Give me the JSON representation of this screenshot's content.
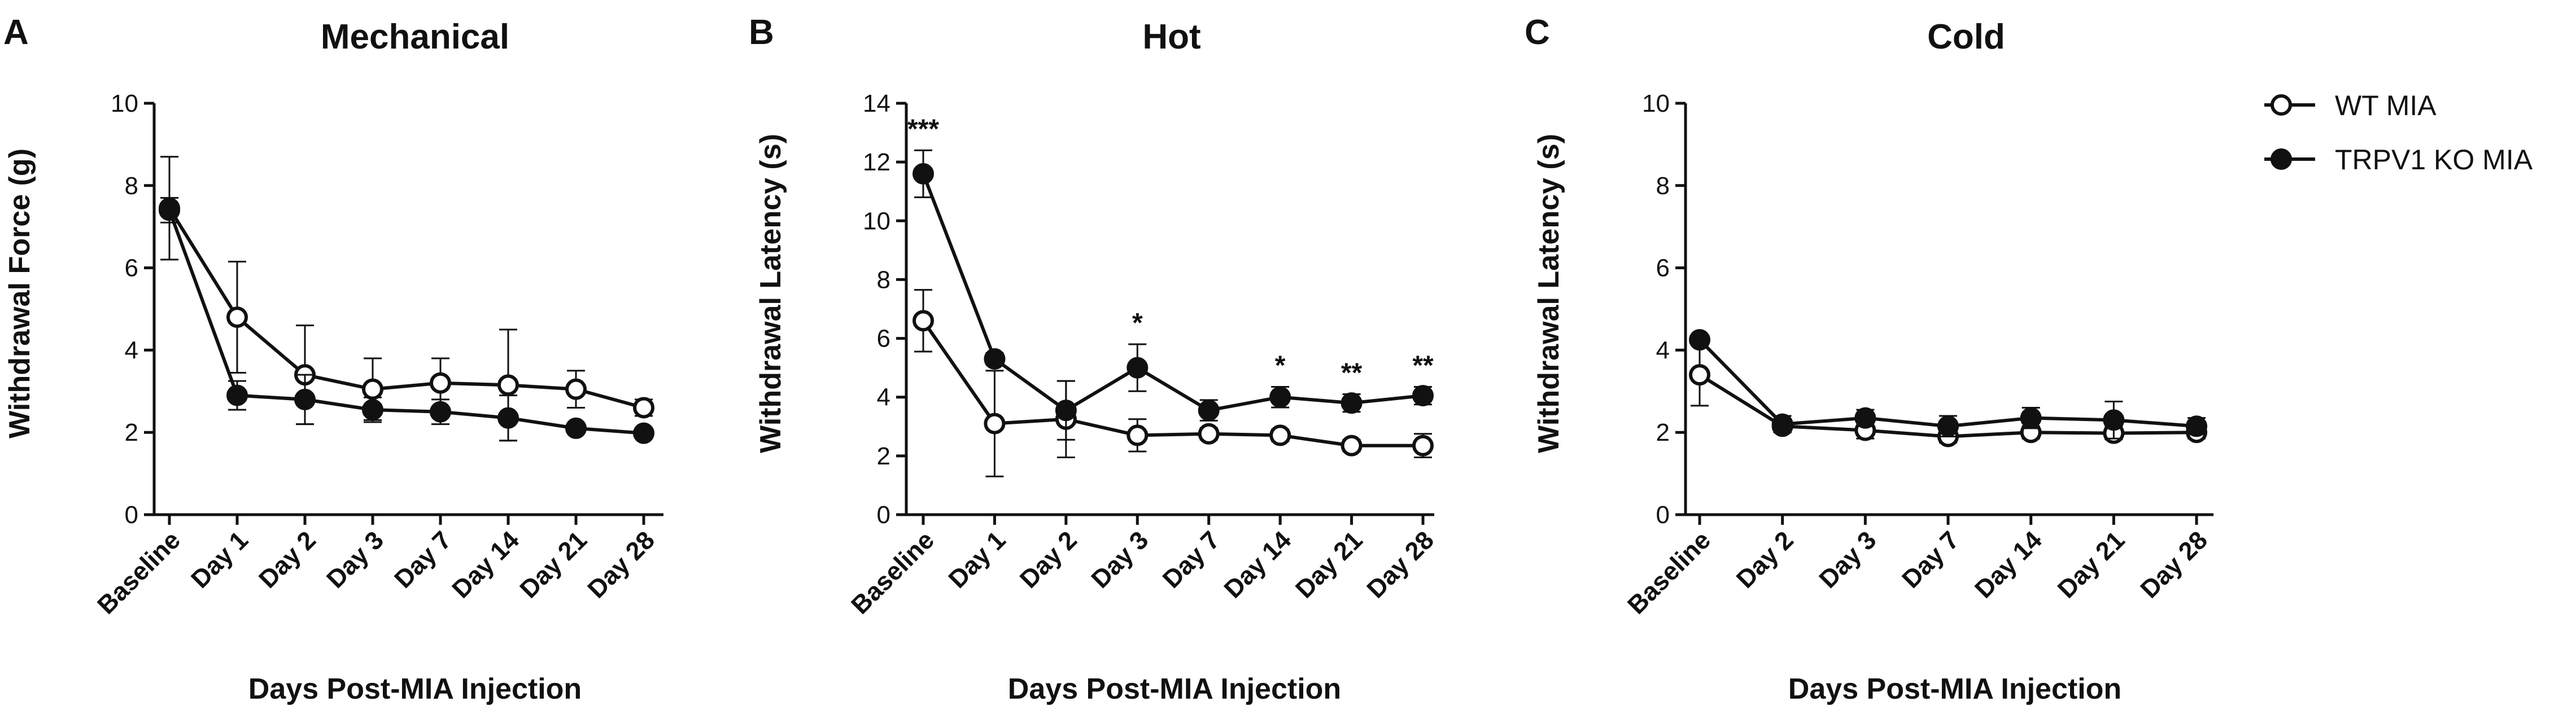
{
  "chart_data": [
    {
      "type": "line",
      "panel": "A",
      "title": "Mechanical",
      "xlabel": "Days Post-MIA Injection",
      "ylabel": "Withdrawal Force (g)",
      "ylim": [
        0,
        10
      ],
      "yticks": [
        "0",
        "2",
        "4",
        "6",
        "8",
        "10"
      ],
      "categories": [
        "Baseline",
        "Day 1",
        "Day 2",
        "Day 3",
        "Day 7",
        "Day 14",
        "Day 21",
        "Day 28"
      ],
      "series": [
        {
          "name": "WT MIA",
          "marker": "open-circle",
          "values": [
            7.45,
            4.8,
            3.4,
            3.05,
            3.2,
            3.15,
            3.05,
            2.6
          ],
          "errors": [
            1.25,
            1.35,
            1.2,
            0.75,
            0.6,
            1.35,
            0.45,
            0.2
          ]
        },
        {
          "name": "TRPV1 KO MIA",
          "marker": "filled-circle",
          "values": [
            7.4,
            2.9,
            2.8,
            2.55,
            2.5,
            2.35,
            2.1,
            1.98
          ],
          "errors": [
            0.3,
            0.35,
            0.6,
            0.3,
            0.3,
            0.55,
            0.12,
            0.12
          ]
        }
      ],
      "significance": []
    },
    {
      "type": "line",
      "panel": "B",
      "title": "Hot",
      "xlabel": "Days Post-MIA Injection",
      "ylabel": "Withdrawal Latency (s)",
      "ylim": [
        0,
        14
      ],
      "yticks": [
        "0",
        "2",
        "4",
        "6",
        "8",
        "10",
        "12",
        "14"
      ],
      "categories": [
        "Baseline",
        "Day 1",
        "Day 2",
        "Day 3",
        "Day 7",
        "Day 14",
        "Day 21",
        "Day 28"
      ],
      "series": [
        {
          "name": "WT MIA",
          "marker": "open-circle",
          "values": [
            6.6,
            3.1,
            3.25,
            2.7,
            2.75,
            2.7,
            2.35,
            2.35
          ],
          "errors": [
            1.05,
            1.8,
            1.3,
            0.55,
            0.2,
            0.2,
            0.2,
            0.4
          ]
        },
        {
          "name": "TRPV1 KO MIA",
          "marker": "filled-circle",
          "values": [
            11.6,
            5.3,
            3.55,
            5.0,
            3.55,
            4.0,
            3.8,
            4.05
          ],
          "errors": [
            0.8,
            0.2,
            1.0,
            0.8,
            0.35,
            0.35,
            0.3,
            0.3
          ]
        }
      ],
      "significance": [
        {
          "category": "Baseline",
          "label": "***"
        },
        {
          "category": "Day 3",
          "label": "*"
        },
        {
          "category": "Day 14",
          "label": "*"
        },
        {
          "category": "Day 21",
          "label": "**"
        },
        {
          "category": "Day 28",
          "label": "**"
        }
      ]
    },
    {
      "type": "line",
      "panel": "C",
      "title": "Cold",
      "xlabel": "Days Post-MIA Injection",
      "ylabel": "Withdrawal Latency (s)",
      "ylim": [
        0,
        10
      ],
      "yticks": [
        "0",
        "2",
        "4",
        "6",
        "8",
        "10"
      ],
      "categories": [
        "Baseline",
        "Day 2",
        "Day 3",
        "Day 7",
        "Day 14",
        "Day 21",
        "Day 28"
      ],
      "series": [
        {
          "name": "WT MIA",
          "marker": "open-circle",
          "values": [
            3.4,
            2.15,
            2.05,
            1.9,
            2.0,
            1.98,
            2.0
          ],
          "errors": [
            0.75,
            0.15,
            0.2,
            0.15,
            0.15,
            0.15,
            0.15
          ]
        },
        {
          "name": "TRPV1 KO MIA",
          "marker": "filled-circle",
          "values": [
            4.25,
            2.2,
            2.35,
            2.15,
            2.35,
            2.3,
            2.15
          ],
          "errors": [
            0.1,
            0.2,
            0.2,
            0.25,
            0.25,
            0.45,
            0.2
          ]
        }
      ],
      "significance": []
    }
  ],
  "legend": {
    "position": "top-right",
    "items": [
      {
        "label": "WT MIA",
        "marker": "open-circle"
      },
      {
        "label": "TRPV1 KO MIA",
        "marker": "filled-circle"
      }
    ]
  },
  "colors": {
    "ink": "#111111",
    "background": "#ffffff"
  }
}
